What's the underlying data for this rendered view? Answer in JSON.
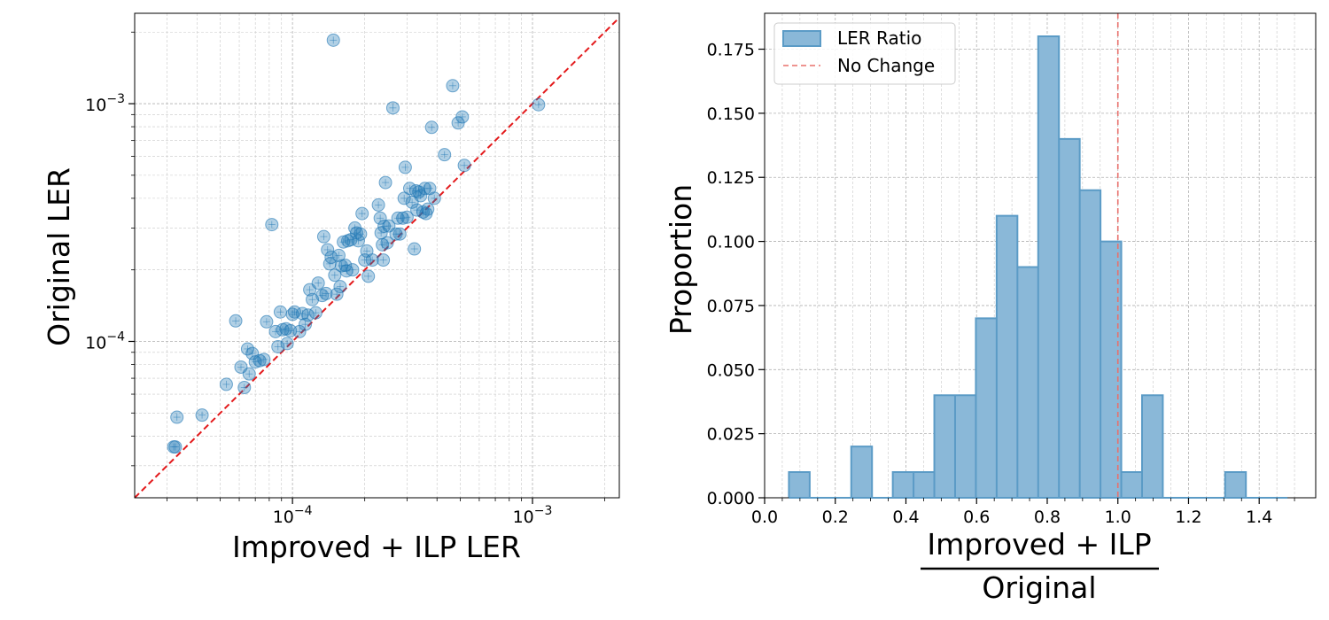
{
  "chart_data": [
    {
      "type": "scatter",
      "xlabel": "Improved + ILP LER",
      "ylabel": "Original LER",
      "xscale": "log",
      "yscale": "log",
      "xlim": [
        2.2e-05,
        0.0023
      ],
      "ylim": [
        2.2e-05,
        0.0024
      ],
      "x_ticks": [
        {
          "value": 0.0001,
          "mantissa": "10",
          "exponent": "−4"
        },
        {
          "value": 0.001,
          "mantissa": "10",
          "exponent": "−3"
        }
      ],
      "y_ticks": [
        {
          "value": 0.0001,
          "mantissa": "10",
          "exponent": "−4"
        },
        {
          "value": 0.001,
          "mantissa": "10",
          "exponent": "−3"
        }
      ],
      "reference_line": {
        "label": "y = x",
        "color": "#e31a1c"
      },
      "point_color": "#1f77b4",
      "points": [
        [
          3.2e-05,
          3.6e-05
        ],
        [
          3.25e-05,
          3.6e-05
        ],
        [
          3.3e-05,
          4.8e-05
        ],
        [
          4.2e-05,
          4.9e-05
        ],
        [
          5.3e-05,
          6.6e-05
        ],
        [
          5.8e-05,
          0.000122
        ],
        [
          6.1e-05,
          7.8e-05
        ],
        [
          6.3e-05,
          6.4e-05
        ],
        [
          6.5e-05,
          9.3e-05
        ],
        [
          6.6e-05,
          7.3e-05
        ],
        [
          6.8e-05,
          8.9e-05
        ],
        [
          7e-05,
          8.2e-05
        ],
        [
          7.3e-05,
          8.3e-05
        ],
        [
          7.6e-05,
          8.4e-05
        ],
        [
          7.8e-05,
          0.000121
        ],
        [
          8.2e-05,
          0.00031
        ],
        [
          8.5e-05,
          0.00011
        ],
        [
          8.7e-05,
          9.5e-05
        ],
        [
          8.9e-05,
          0.000133
        ],
        [
          9.1e-05,
          0.000112
        ],
        [
          9.4e-05,
          0.000113
        ],
        [
          9.5e-05,
          9.8e-05
        ],
        [
          9.8e-05,
          0.000111
        ],
        [
          0.0001,
          0.00013
        ],
        [
          0.000102,
          0.000133
        ],
        [
          0.000107,
          0.00011
        ],
        [
          0.00011,
          0.000131
        ],
        [
          0.000113,
          0.000118
        ],
        [
          0.000116,
          0.000129
        ],
        [
          0.000118,
          0.000165
        ],
        [
          0.000121,
          0.00015
        ],
        [
          0.000125,
          0.000132
        ],
        [
          0.000128,
          0.000176
        ],
        [
          0.000133,
          0.000156
        ],
        [
          0.000135,
          0.000276
        ],
        [
          0.000138,
          0.000159
        ],
        [
          0.00014,
          0.000243
        ],
        [
          0.000143,
          0.000212
        ],
        [
          0.000145,
          0.000226
        ],
        [
          0.000148,
          0.00185
        ],
        [
          0.00015,
          0.00019
        ],
        [
          0.000153,
          0.000158
        ],
        [
          0.000156,
          0.00023
        ],
        [
          0.000158,
          0.00017
        ],
        [
          0.00016,
          0.000208
        ],
        [
          0.000163,
          0.000262
        ],
        [
          0.000166,
          0.000209
        ],
        [
          0.000168,
          0.000198
        ],
        [
          0.00017,
          0.000265
        ],
        [
          0.000175,
          0.000268
        ],
        [
          0.000178,
          0.0002
        ],
        [
          0.000182,
          0.0003
        ],
        [
          0.000185,
          0.000286
        ],
        [
          0.000188,
          0.000265
        ],
        [
          0.000192,
          0.000283
        ],
        [
          0.000195,
          0.000345
        ],
        [
          0.0002,
          0.00022
        ],
        [
          0.000204,
          0.00024
        ],
        [
          0.000207,
          0.000188
        ],
        [
          0.000215,
          0.00022
        ],
        [
          0.000228,
          0.000375
        ],
        [
          0.000232,
          0.00033
        ],
        [
          0.000234,
          0.000286
        ],
        [
          0.000237,
          0.000255
        ],
        [
          0.000239,
          0.00022
        ],
        [
          0.000241,
          0.000305
        ],
        [
          0.000244,
          0.000466
        ],
        [
          0.000248,
          0.00026
        ],
        [
          0.000252,
          0.000306
        ],
        [
          0.000262,
          0.00096
        ],
        [
          0.00027,
          0.000283
        ],
        [
          0.000275,
          0.00033
        ],
        [
          0.00028,
          0.000283
        ],
        [
          0.000288,
          0.00033
        ],
        [
          0.000292,
          0.0004
        ],
        [
          0.000295,
          0.00054
        ],
        [
          0.0003,
          0.000333
        ],
        [
          0.000308,
          0.00044
        ],
        [
          0.000315,
          0.000385
        ],
        [
          0.000322,
          0.000245
        ],
        [
          0.000327,
          0.00043
        ],
        [
          0.00033,
          0.000357
        ],
        [
          0.000336,
          0.000425
        ],
        [
          0.000342,
          0.00041
        ],
        [
          0.00035,
          0.00035
        ],
        [
          0.000356,
          0.00044
        ],
        [
          0.00036,
          0.000345
        ],
        [
          0.000366,
          0.00036
        ],
        [
          0.000373,
          0.00044
        ],
        [
          0.00038,
          0.000795
        ],
        [
          0.00039,
          0.0004
        ],
        [
          0.00043,
          0.00061
        ],
        [
          0.000465,
          0.00119
        ],
        [
          0.00049,
          0.00083
        ],
        [
          0.00051,
          0.00088
        ],
        [
          0.00052,
          0.00055
        ],
        [
          0.00106,
          0.00099
        ]
      ]
    },
    {
      "type": "histogram",
      "xlabel_numerator": "Improved + ILP",
      "xlabel_denominator": "Original",
      "ylabel": "Proportion",
      "xlim": [
        0.0,
        1.56
      ],
      "ylim": [
        0.0,
        0.189
      ],
      "x_ticks": [
        "0.0",
        "0.2",
        "0.4",
        "0.6",
        "0.8",
        "1.0",
        "1.2",
        "1.4"
      ],
      "y_ticks": [
        "0.000",
        "0.025",
        "0.050",
        "0.075",
        "0.100",
        "0.125",
        "0.150",
        "0.175"
      ],
      "bin_start": 0.0688,
      "bin_width": 0.0588,
      "values": [
        0.01,
        0.0,
        0.0,
        0.02,
        0.0,
        0.01,
        0.01,
        0.04,
        0.04,
        0.07,
        0.11,
        0.09,
        0.18,
        0.14,
        0.12,
        0.1,
        0.01,
        0.04,
        0.0,
        0.0,
        0.0,
        0.01,
        0.0,
        0.0
      ],
      "bar_fill": "#8ab8d8",
      "bar_edge": "#5b9bc6",
      "reference_x": 1.0,
      "reference_color": "#e8706c",
      "legend": {
        "position": "top-left",
        "entries": [
          {
            "label": "LER Ratio",
            "kind": "patch"
          },
          {
            "label": "No Change",
            "kind": "dashed-line"
          }
        ]
      }
    }
  ]
}
